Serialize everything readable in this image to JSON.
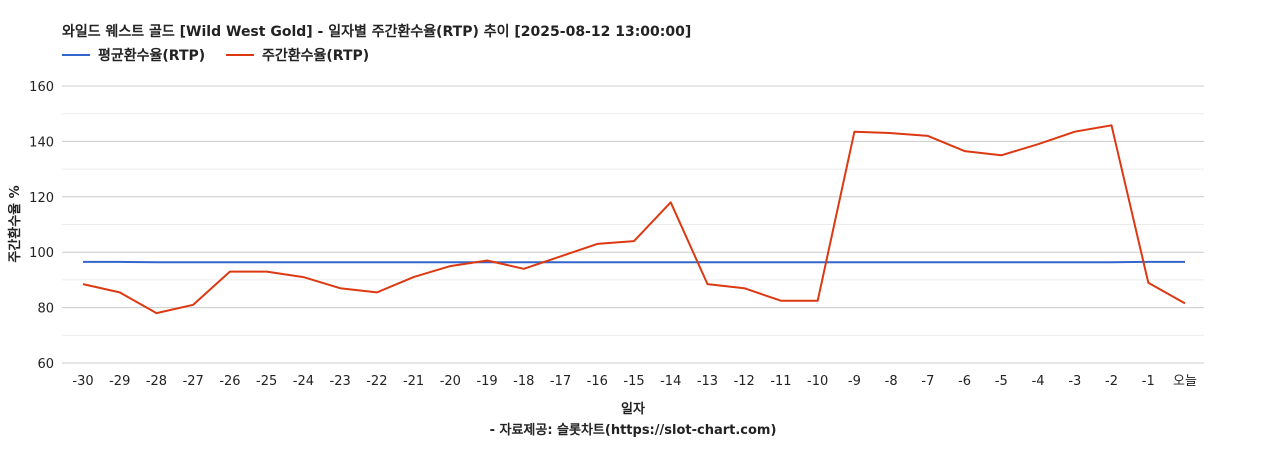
{
  "chart_data": {
    "type": "line",
    "title": "와일드 웨스트 골드 [Wild West Gold] - 일자별 주간환수율(RTP) 추이 [2025-08-12 13:00:00]",
    "xlabel": "일자",
    "ylabel": "주간환수율 %",
    "source": "- 자료제공: 슬롯차트(https://slot-chart.com)",
    "ylim": [
      60,
      160
    ],
    "yticks": [
      60,
      80,
      100,
      120,
      140,
      160
    ],
    "grid": true,
    "legend_position": "top-left",
    "categories": [
      "-30",
      "-29",
      "-28",
      "-27",
      "-26",
      "-25",
      "-24",
      "-23",
      "-22",
      "-21",
      "-20",
      "-19",
      "-18",
      "-17",
      "-16",
      "-15",
      "-14",
      "-13",
      "-12",
      "-11",
      "-10",
      "-9",
      "-8",
      "-7",
      "-6",
      "-5",
      "-4",
      "-3",
      "-2",
      "-1",
      "오늘"
    ],
    "series": [
      {
        "name": "평균환수율(RTP)",
        "color": "#3366cc",
        "values": [
          96.5,
          96.5,
          96.4,
          96.4,
          96.4,
          96.4,
          96.4,
          96.4,
          96.4,
          96.4,
          96.4,
          96.4,
          96.4,
          96.4,
          96.4,
          96.4,
          96.4,
          96.4,
          96.4,
          96.4,
          96.4,
          96.4,
          96.4,
          96.4,
          96.4,
          96.4,
          96.4,
          96.4,
          96.4,
          96.5,
          96.5
        ]
      },
      {
        "name": "주간환수율(RTP)",
        "color": "#dc3912",
        "values": [
          88.5,
          85.5,
          78,
          81,
          93,
          93,
          91,
          87,
          85.5,
          91,
          95,
          97,
          94,
          98.5,
          103,
          104,
          118,
          88.5,
          87,
          82.5,
          82.5,
          143.5,
          143,
          142,
          136.5,
          135,
          139,
          143.5,
          145.8,
          89,
          81.5
        ]
      }
    ]
  }
}
